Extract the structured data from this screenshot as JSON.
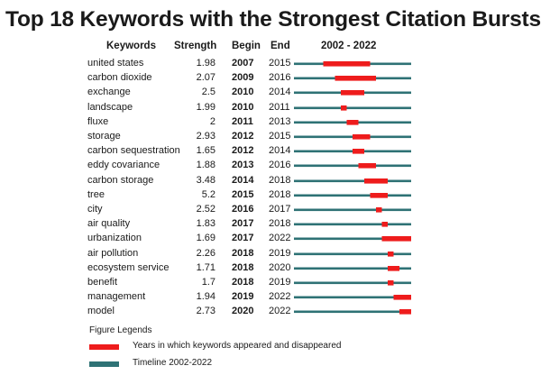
{
  "title": "Top 18 Keywords with the Strongest Citation Bursts",
  "headers": {
    "keywords": "Keywords",
    "strength": "Strength",
    "begin": "Begin",
    "end": "End",
    "range": "2002 - 2022"
  },
  "colors": {
    "burst": "#ee1c1c",
    "timeline": "#2e7275"
  },
  "legend": {
    "title": "Figure Legends",
    "burst_label": "Years in which keywords appeared and disappeared",
    "timeline_label": "Timeline 2002-2022"
  },
  "chart_data": {
    "type": "table",
    "timeline_start": 2002,
    "timeline_end": 2022,
    "rows": [
      {
        "keyword": "united states",
        "strength": "1.98",
        "begin": "2007",
        "end": "2015"
      },
      {
        "keyword": "carbon dioxide",
        "strength": "2.07",
        "begin": "2009",
        "end": "2016"
      },
      {
        "keyword": "exchange",
        "strength": "2.5",
        "begin": "2010",
        "end": "2014"
      },
      {
        "keyword": "landscape",
        "strength": "1.99",
        "begin": "2010",
        "end": "2011"
      },
      {
        "keyword": "fluxe",
        "strength": "2",
        "begin": "2011",
        "end": "2013"
      },
      {
        "keyword": "storage",
        "strength": "2.93",
        "begin": "2012",
        "end": "2015"
      },
      {
        "keyword": "carbon sequestration",
        "strength": "1.65",
        "begin": "2012",
        "end": "2014"
      },
      {
        "keyword": "eddy covariance",
        "strength": "1.88",
        "begin": "2013",
        "end": "2016"
      },
      {
        "keyword": "carbon storage",
        "strength": "3.48",
        "begin": "2014",
        "end": "2018"
      },
      {
        "keyword": "tree",
        "strength": "5.2",
        "begin": "2015",
        "end": "2018"
      },
      {
        "keyword": "city",
        "strength": "2.52",
        "begin": "2016",
        "end": "2017"
      },
      {
        "keyword": "air quality",
        "strength": "1.83",
        "begin": "2017",
        "end": "2018"
      },
      {
        "keyword": "urbanization",
        "strength": "1.69",
        "begin": "2017",
        "end": "2022"
      },
      {
        "keyword": "air pollution",
        "strength": "2.26",
        "begin": "2018",
        "end": "2019"
      },
      {
        "keyword": "ecosystem service",
        "strength": "1.71",
        "begin": "2018",
        "end": "2020"
      },
      {
        "keyword": "benefit",
        "strength": "1.7",
        "begin": "2018",
        "end": "2019"
      },
      {
        "keyword": "management",
        "strength": "1.94",
        "begin": "2019",
        "end": "2022"
      },
      {
        "keyword": "model",
        "strength": "2.73",
        "begin": "2020",
        "end": "2022"
      }
    ]
  }
}
